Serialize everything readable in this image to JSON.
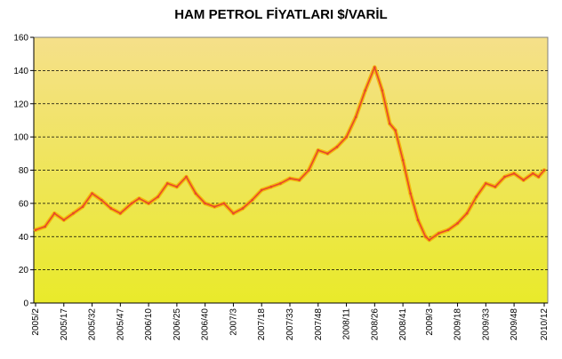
{
  "chart_data": {
    "type": "line",
    "title": "HAM PETROL FİYATLARI $/VARİL",
    "xlabel": "",
    "ylabel": "",
    "ylim": [
      0,
      160
    ],
    "yticks": [
      0,
      20,
      40,
      60,
      80,
      100,
      120,
      140,
      160
    ],
    "grid": true,
    "legend": "none",
    "colors": {
      "plot_top": "#F5E08A",
      "plot_bottom": "#E9EA2A",
      "series_main": "#E8482A",
      "series_halo": "#F4B000",
      "grid": "#000000"
    },
    "x_ticks": [
      "2005/2",
      "2005/17",
      "2005/32",
      "2005/47",
      "2006/10",
      "2006/25",
      "2006/40",
      "2007/3",
      "2007/18",
      "2007/33",
      "2007/48",
      "2008/11",
      "2008/26",
      "2008/41",
      "2009/3",
      "2009/18",
      "2009/33",
      "2009/48",
      "2010/12"
    ],
    "series": [
      {
        "x": [
          "2005/2",
          "2005/7",
          "2005/12",
          "2005/17",
          "2005/22",
          "2005/27",
          "2005/32",
          "2005/37",
          "2005/42",
          "2005/47",
          "2006/1",
          "2006/5",
          "2006/10",
          "2006/15",
          "2006/20",
          "2006/25",
          "2006/30",
          "2006/35",
          "2006/40",
          "2006/45",
          "2006/50",
          "2007/3",
          "2007/8",
          "2007/13",
          "2007/18",
          "2007/23",
          "2007/28",
          "2007/33",
          "2007/38",
          "2007/43",
          "2007/48",
          "2008/1",
          "2008/6",
          "2008/11",
          "2008/16",
          "2008/21",
          "2008/26",
          "2008/30",
          "2008/34",
          "2008/37",
          "2008/41",
          "2008/45",
          "2008/49",
          "2009/1",
          "2009/3",
          "2009/8",
          "2009/13",
          "2009/18",
          "2009/23",
          "2009/28",
          "2009/33",
          "2009/38",
          "2009/43",
          "2009/48",
          "2010/1",
          "2010/6",
          "2010/9",
          "2010/12"
        ],
        "values": [
          44,
          46,
          54,
          50,
          54,
          58,
          66,
          62,
          57,
          54,
          60,
          63,
          60,
          64,
          72,
          70,
          76,
          66,
          60,
          58,
          60,
          54,
          57,
          62,
          68,
          70,
          72,
          75,
          74,
          80,
          92,
          90,
          94,
          100,
          112,
          128,
          142,
          128,
          108,
          104,
          86,
          66,
          50,
          40,
          38,
          42,
          44,
          48,
          54,
          64,
          72,
          70,
          76,
          78,
          74,
          78,
          76,
          80
        ]
      }
    ]
  }
}
